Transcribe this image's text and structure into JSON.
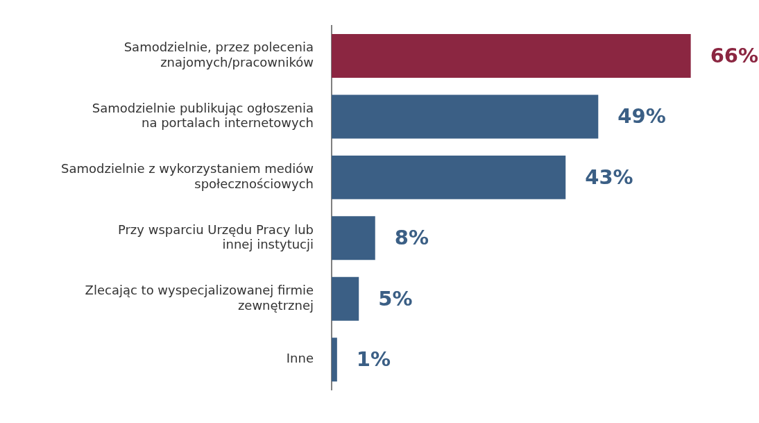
{
  "chart_data": {
    "type": "bar",
    "orientation": "horizontal",
    "categories": [
      "Samodzielnie, przez polecenia\nznajomych/pracowników",
      "Samodzielnie publikując ogłoszenia\nna portalach internetowych",
      "Samodzielnie z wykorzystaniem mediów\nspołecznościowych",
      "Przy wsparciu Urzędu Pracy lub\ninnej instytucji",
      "Zlecając to wyspecjalizowanej firmie\nzewnętrznej",
      "Inne"
    ],
    "values": [
      66,
      49,
      43,
      8,
      5,
      1
    ],
    "colors": [
      "#8b2641",
      "#3b5f85",
      "#3b5f85",
      "#3b5f85",
      "#3b5f85",
      "#3b5f85"
    ],
    "value_labels": [
      "66%",
      "49%",
      "43%",
      "8%",
      "5%",
      "1%"
    ]
  }
}
